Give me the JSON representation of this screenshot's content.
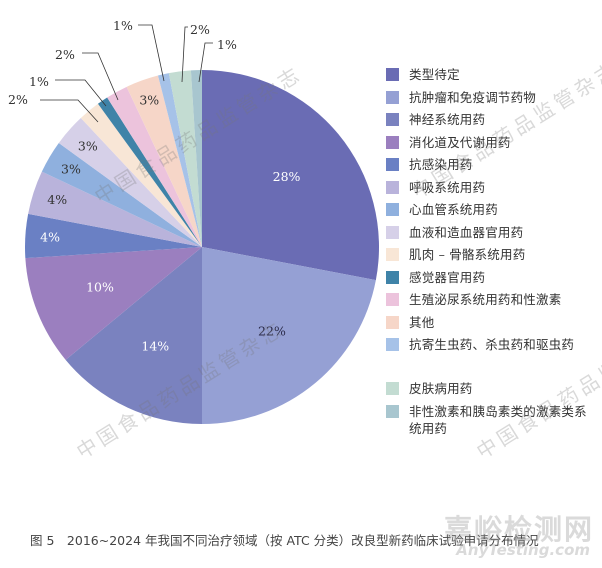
{
  "chart_data": {
    "type": "pie",
    "title": "图5　2016~2024 年我国不同治疗领域（按 ATC 分类）改良型新药临床试验申请分布情况",
    "start_angle": "12 o'clock, clockwise",
    "legend_position": "right",
    "slices": [
      {
        "label": "类型待定",
        "value": 28,
        "color": "#6a6cb4",
        "text": "28%",
        "label_color": "#ffffff",
        "inside": true
      },
      {
        "label": "抗肿瘤和免疫调节药物",
        "value": 22,
        "color": "#95a0d4",
        "text": "22%",
        "label_color": "#2a2a4a",
        "inside": true
      },
      {
        "label": "神经系统用药",
        "value": 14,
        "color": "#7a82bf",
        "text": "14%",
        "label_color": "#ffffff",
        "inside": true
      },
      {
        "label": "消化道及代谢用药",
        "value": 10,
        "color": "#9b7fbf",
        "text": "10%",
        "label_color": "#ffffff",
        "inside": true
      },
      {
        "label": "抗感染用药",
        "value": 4,
        "color": "#6a80c4",
        "text": "4%",
        "label_color": "#ffffff",
        "inside": true
      },
      {
        "label": "呼吸系统用药",
        "value": 4,
        "color": "#b9b3db",
        "text": "4%",
        "label_color": "#333333",
        "inside": true
      },
      {
        "label": "心血管系统用药",
        "value": 3,
        "color": "#8fb0de",
        "text": "3%",
        "label_color": "#333333",
        "inside": true
      },
      {
        "label": "血液和造血器官用药",
        "value": 3,
        "color": "#d6d0e8",
        "text": "3%",
        "label_color": "#333333",
        "inside": true
      },
      {
        "label": "肌肉－骨骼系统用药",
        "value": 2,
        "color": "#f8e6d6",
        "text": "2%",
        "label_color": "#333333",
        "inside": false
      },
      {
        "label": "感觉器官用药",
        "value": 1,
        "color": "#3f83a8",
        "text": "1%",
        "label_color": "#333333",
        "inside": false
      },
      {
        "label": "生殖泌尿系统用药和性激素",
        "value": 2,
        "color": "#ecc3dc",
        "text": "2%",
        "label_color": "#333333",
        "inside": false
      },
      {
        "label": "其他",
        "value": 3,
        "color": "#f6d6c8",
        "text": "3%",
        "label_color": "#333333",
        "inside": true
      },
      {
        "label": "抗寄生虫药、杀虫药和驱虫药",
        "value": 1,
        "color": "#a6c2e8",
        "text": "1%",
        "label_color": "#333333",
        "inside": false
      },
      {
        "label": "皮肤病用药",
        "value": 2,
        "color": "#c3dcd2",
        "text": "2%",
        "label_color": "#333333",
        "inside": false
      },
      {
        "label": "非性激素和胰岛素类的激素类系统用药",
        "value": 1,
        "color": "#a8c6cf",
        "text": "1%",
        "label_color": "#333333",
        "inside": false
      }
    ]
  },
  "legend": {
    "items": [
      {
        "label": "类型待定",
        "color": "#6a6cb4"
      },
      {
        "label": "抗肿瘤和免疫调节药物",
        "color": "#95a0d4"
      },
      {
        "label": "神经系统用药",
        "color": "#7a82bf"
      },
      {
        "label": "消化道及代谢用药",
        "color": "#9b7fbf"
      },
      {
        "label": "抗感染用药",
        "color": "#6a80c4"
      },
      {
        "label": "呼吸系统用药",
        "color": "#b9b3db"
      },
      {
        "label": "心血管系统用药",
        "color": "#8fb0de"
      },
      {
        "label": "血液和造血器官用药",
        "color": "#d6d0e8"
      },
      {
        "label": "肌肉 – 骨骼系统用药",
        "color": "#f8e6d6"
      },
      {
        "label": "感觉器官用药",
        "color": "#3f83a8"
      },
      {
        "label": "生殖泌尿系统用药和性激素",
        "color": "#ecc3dc"
      },
      {
        "label": "其他",
        "color": "#f6d6c8"
      },
      {
        "label": "抗寄生虫药、杀虫药和驱虫药",
        "color": "#a6c2e8"
      },
      {
        "label": "皮肤病用药",
        "color": "#c3dcd2"
      },
      {
        "label": "非性激素和胰岛素类的激素类系统用药",
        "color": "#a8c6cf"
      }
    ]
  },
  "caption": "图 5　2016~2024 年我国不同治疗领域（按 ATC 分类）改良型新药临床试验申请分布情况",
  "watermark": {
    "text": "中国食品药品监管杂志",
    "brand": "嘉峪检测网",
    "brand_sub": "AnyTesting.com"
  }
}
